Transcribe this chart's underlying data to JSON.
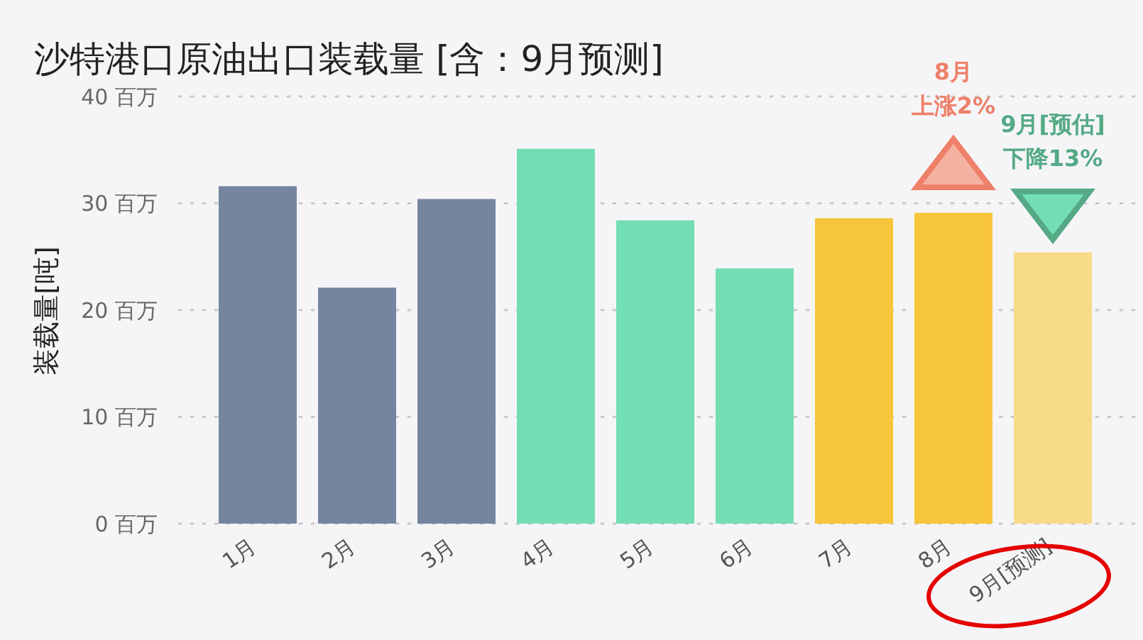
{
  "chart_data": {
    "type": "bar",
    "title": "沙特港口原油出口装载量 [含：9月预测]",
    "ylabel": "装载量[吨]",
    "categories": [
      "1月",
      "2月",
      "3月",
      "4月",
      "5月",
      "6月",
      "7月",
      "8月",
      "9月[预测]"
    ],
    "values": [
      31.6,
      22.1,
      30.4,
      35.1,
      28.4,
      23.9,
      28.6,
      29.1,
      25.4
    ],
    "colors": [
      "#75859f",
      "#75859f",
      "#75859f",
      "#73deb3",
      "#73deb3",
      "#73deb3",
      "#f6c53a",
      "#f6c53a",
      "#f8db86"
    ],
    "ylim": [
      0,
      40
    ],
    "yticks": [
      {
        "value": 0,
        "label": "0 百万"
      },
      {
        "value": 10,
        "label": "10 百万"
      },
      {
        "value": 20,
        "label": "20 百万"
      },
      {
        "value": 30,
        "label": "30 百万"
      },
      {
        "value": 40,
        "label": "40 百万"
      }
    ],
    "grid": "y",
    "annotations": [
      "8月",
      "上涨2%",
      "9月[预估]",
      "下降13%"
    ]
  }
}
